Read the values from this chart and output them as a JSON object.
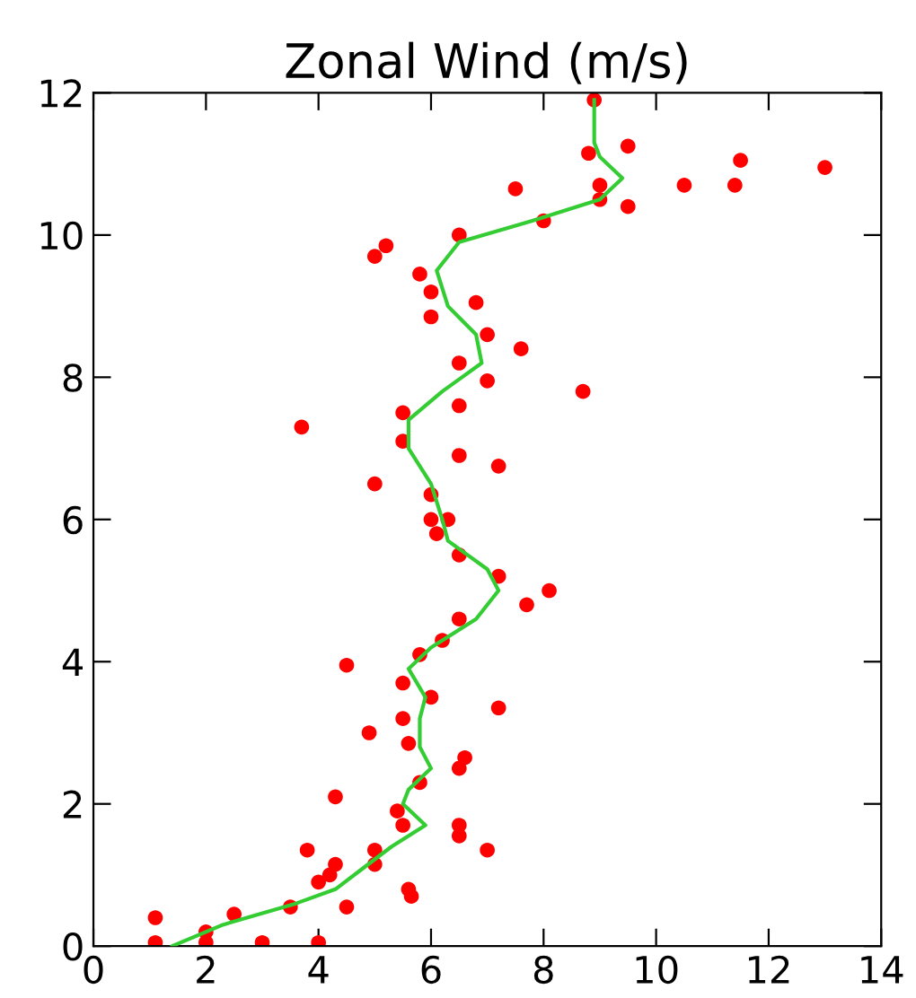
{
  "chart_data": {
    "type": "scatter",
    "title": "Zonal Wind (m/s)",
    "xlim": [
      0,
      14
    ],
    "ylim": [
      0,
      12
    ],
    "xticks": [
      0,
      2,
      4,
      6,
      8,
      10,
      12,
      14
    ],
    "yticks": [
      0,
      2,
      4,
      6,
      8,
      10,
      12
    ],
    "grid": false,
    "marker": "circle",
    "series": [
      {
        "color": "#ff0000",
        "x": [
          1.1,
          2.0,
          3.0,
          4.0,
          2.0,
          1.1,
          2.5,
          3.5,
          4.5,
          5.65,
          5.6,
          4.0,
          4.2,
          4.3,
          5.0,
          3.8,
          5.0,
          7.0,
          6.5,
          5.5,
          6.5,
          5.4,
          4.3,
          5.8,
          6.5,
          6.6,
          5.6,
          4.9,
          5.5,
          7.2,
          6.0,
          5.5,
          4.5,
          5.8,
          6.2,
          6.5,
          7.7,
          8.1,
          7.2,
          6.5,
          6.1,
          6.0,
          6.3,
          6.0,
          5.0,
          7.2,
          6.5,
          5.5,
          3.7,
          5.5,
          6.5,
          8.7,
          7.0,
          6.5,
          7.6,
          7.0,
          6.0,
          6.8,
          6.0,
          5.8,
          5.0,
          5.2,
          6.5,
          8.0,
          9.5,
          9.0,
          7.5,
          9.0,
          10.5,
          11.4,
          13.0,
          11.5,
          8.8,
          9.5,
          8.9
        ],
        "values": [
          0.05,
          0.05,
          0.05,
          0.05,
          0.2,
          0.4,
          0.45,
          0.55,
          0.55,
          0.7,
          0.8,
          0.9,
          1.0,
          1.15,
          1.15,
          1.35,
          1.35,
          1.35,
          1.55,
          1.7,
          1.7,
          1.9,
          2.1,
          2.3,
          2.5,
          2.65,
          2.85,
          3.0,
          3.2,
          3.35,
          3.5,
          3.7,
          3.95,
          4.1,
          4.3,
          4.6,
          4.8,
          5.0,
          5.2,
          5.5,
          5.8,
          6.0,
          6.0,
          6.35,
          6.5,
          6.75,
          6.9,
          7.1,
          7.3,
          7.5,
          7.6,
          7.8,
          7.95,
          8.2,
          8.4,
          8.6,
          8.85,
          9.05,
          9.2,
          9.45,
          9.7,
          9.85,
          10.0,
          10.2,
          10.4,
          10.5,
          10.65,
          10.7,
          10.7,
          10.7,
          10.95,
          11.05,
          11.15,
          11.25,
          11.9
        ]
      },
      {
        "type": "line",
        "color": "#33cc33",
        "marker": "none",
        "x": [
          1.4,
          2.3,
          3.6,
          4.3,
          4.8,
          5.3,
          5.9,
          5.5,
          5.6,
          6.0,
          5.8,
          5.8,
          5.9,
          5.6,
          6.0,
          6.8,
          7.2,
          7.0,
          6.3,
          6.2,
          6.0,
          5.6,
          5.6,
          6.2,
          6.9,
          6.8,
          6.3,
          6.1,
          6.5,
          7.8,
          9.0,
          9.4,
          9.0,
          8.9,
          8.9
        ],
        "values": [
          0,
          0.3,
          0.6,
          0.8,
          1.1,
          1.4,
          1.7,
          2.0,
          2.2,
          2.5,
          2.8,
          3.2,
          3.5,
          3.9,
          4.2,
          4.6,
          5.0,
          5.3,
          5.7,
          6.0,
          6.5,
          7.0,
          7.4,
          7.8,
          8.2,
          8.6,
          9.0,
          9.5,
          9.9,
          10.2,
          10.5,
          10.8,
          11.1,
          11.3,
          11.9
        ]
      }
    ]
  }
}
